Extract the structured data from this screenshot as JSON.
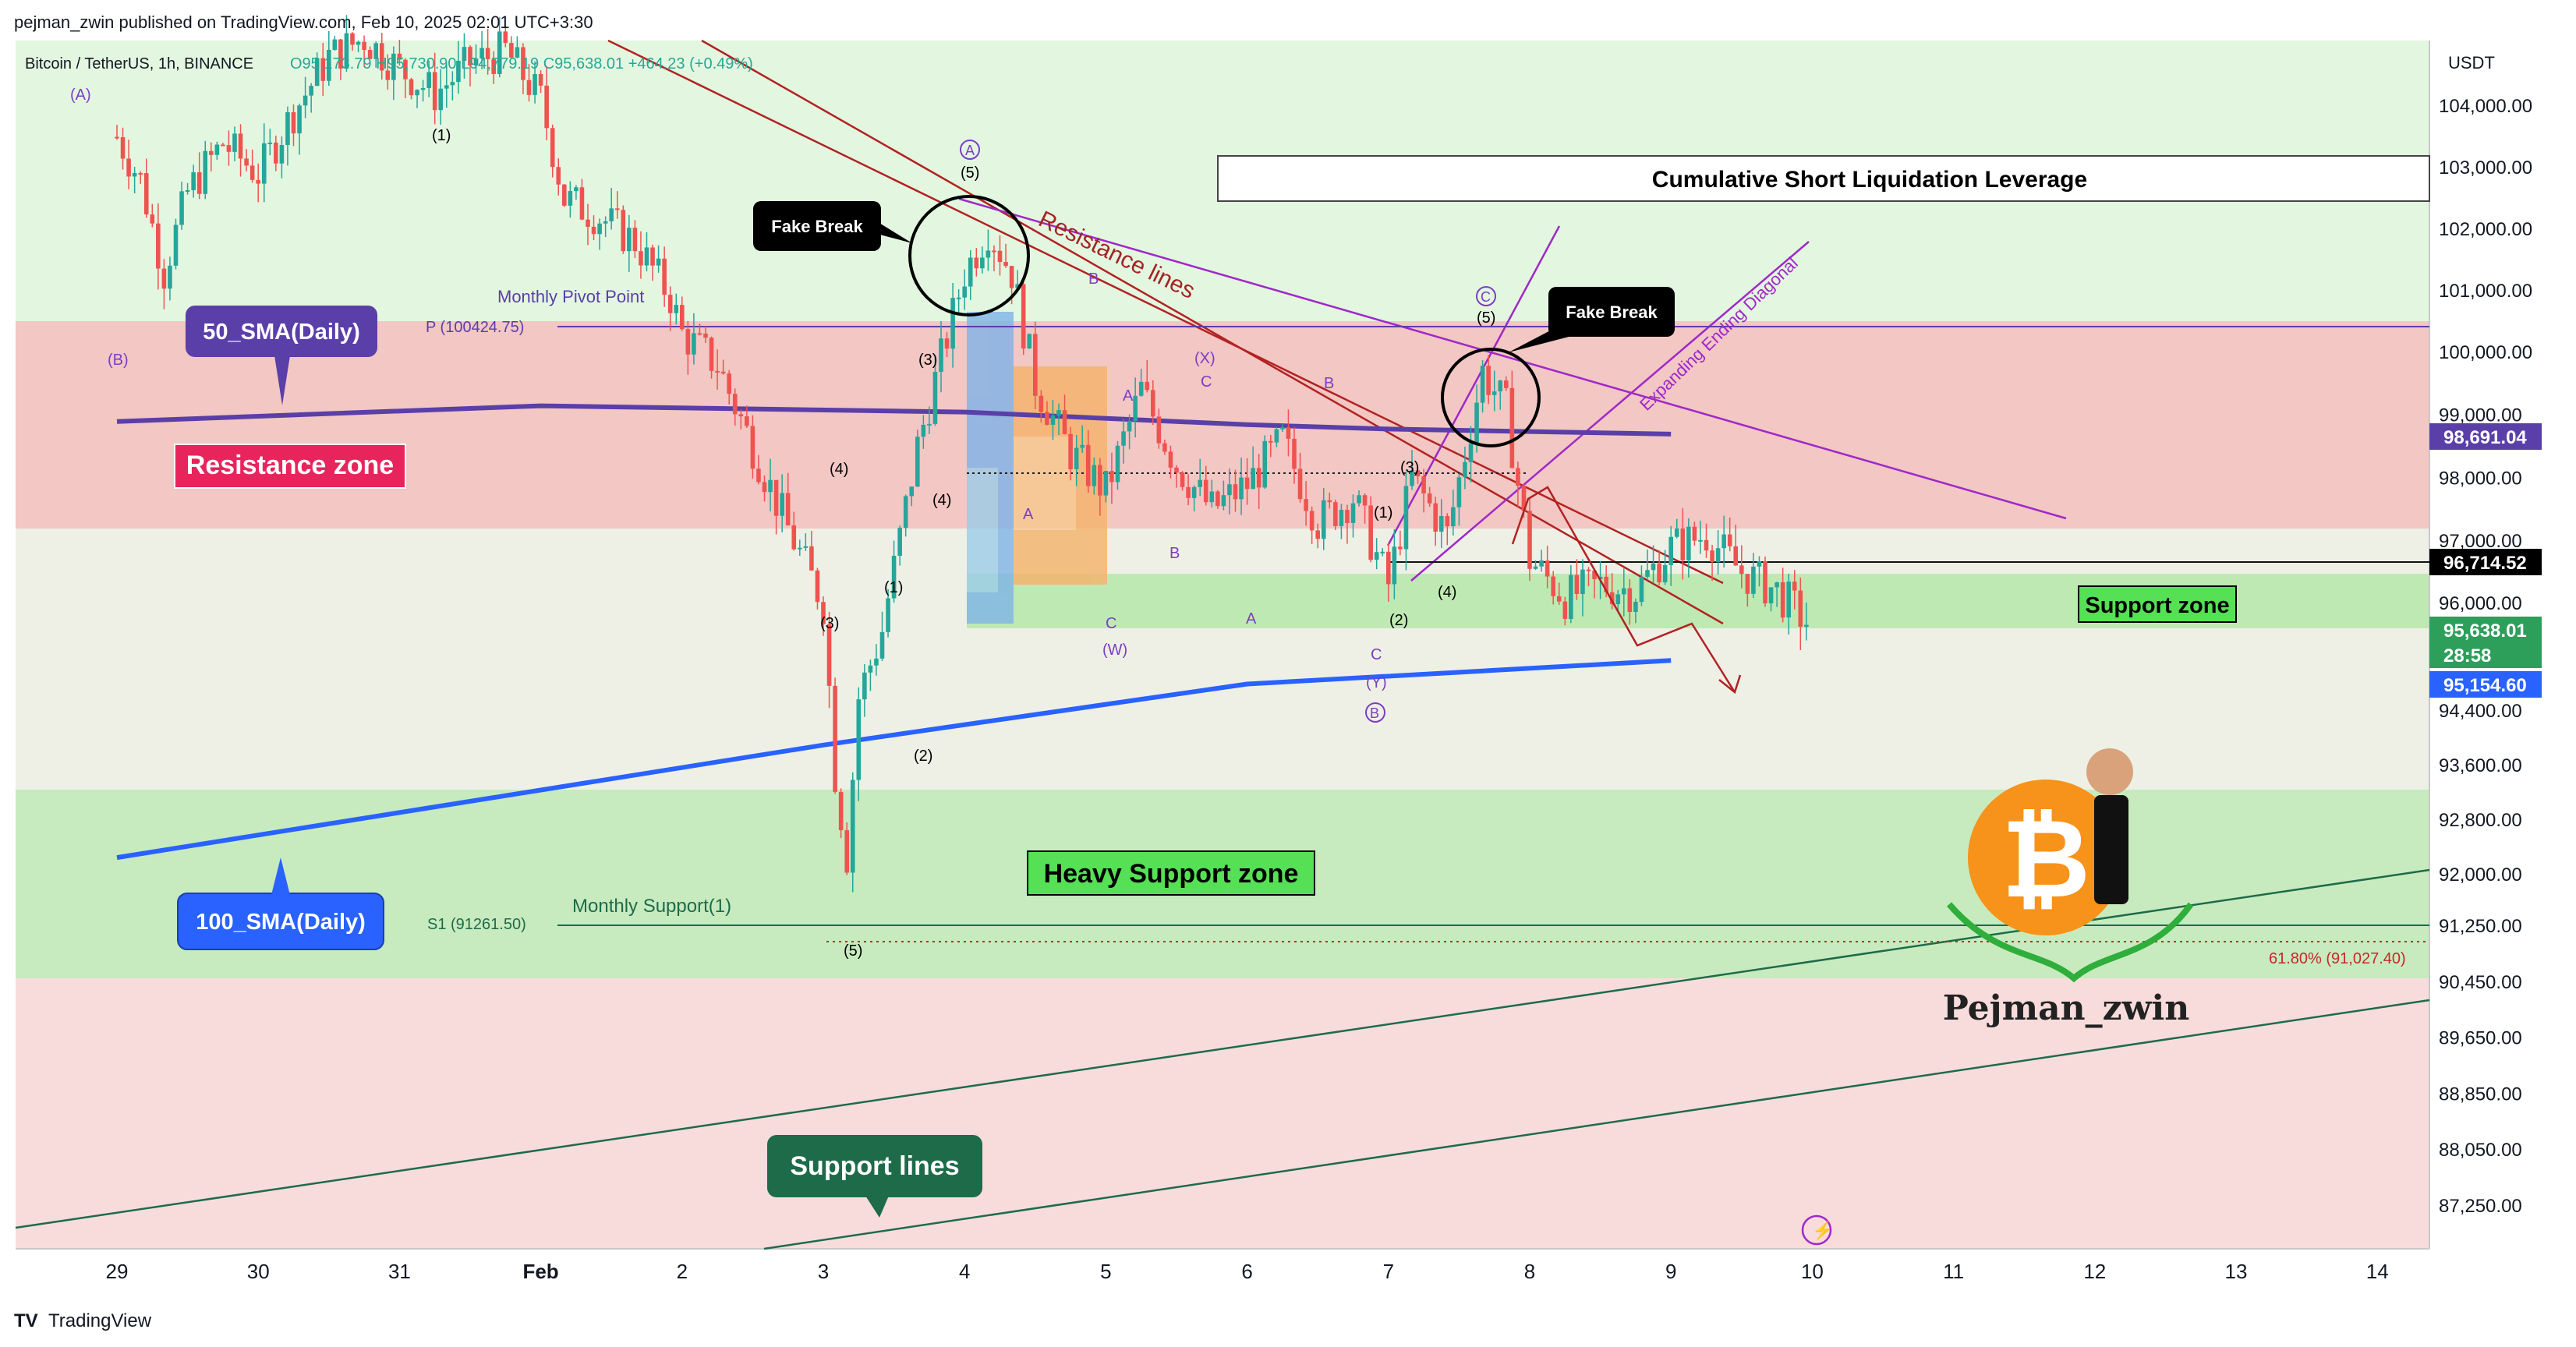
{
  "header": {
    "published": "pejman_zwin published on TradingView.com, Feb 10, 2025 02:01 UTC+3:30",
    "symbol": "Bitcoin / TetherUS, 1h, BINANCE",
    "ohlc": "O95,173.79 H95,730.90 L94,779.19 C95,638.01 +464.23 (+0.49%)"
  },
  "footer": {
    "brand": "TradingView"
  },
  "colors": {
    "up": "#26a69a",
    "down": "#ef5350",
    "resistance_zone": "#f4c6c6",
    "support_zone": "#c5ecc0",
    "sma50": "#5a3fa8",
    "sma100": "#2962ff",
    "price_green": "#2e9e5b",
    "purple_line": "#a028c8",
    "red_line": "#b22222"
  },
  "chart_data": {
    "type": "candlestick",
    "title": "",
    "currency": "USDT",
    "y_ticks": [
      "104,000.00",
      "103,000.00",
      "102,000.00",
      "101,000.00",
      "100,000.00",
      "99,000.00",
      "98,000.00",
      "97,000.00",
      "96,000.00",
      "94,400.00",
      "93,600.00",
      "92,800.00",
      "92,000.00",
      "91,250.00",
      "90,450.00",
      "89,650.00",
      "88,850.00",
      "88,050.00",
      "87,250.00"
    ],
    "x_ticks": [
      "29",
      "30",
      "31",
      "Feb",
      "2",
      "3",
      "4",
      "5",
      "6",
      "7",
      "8",
      "9",
      "10",
      "11",
      "12",
      "13",
      "14"
    ],
    "x_tick_dates": [
      "2025-01-29",
      "2025-01-30",
      "2025-01-31",
      "2025-02-01",
      "2025-02-02",
      "2025-02-03",
      "2025-02-04",
      "2025-02-05",
      "2025-02-06",
      "2025-02-07",
      "2025-02-08",
      "2025-02-09",
      "2025-02-10",
      "2025-02-11",
      "2025-02-12",
      "2025-02-13",
      "2025-02-14"
    ],
    "price_labels": [
      {
        "text": "98,691.04",
        "value": 98691.04,
        "color": "#5a3fa8"
      },
      {
        "text": "96,714.52",
        "value": 96714.52,
        "color": "#000000"
      },
      {
        "text": "95,638.01",
        "value": 95638.01,
        "color": "#2e9e5b"
      },
      {
        "text": "28:58",
        "value": 95638.01,
        "color": "#2e9e5b"
      },
      {
        "text": "95,154.60",
        "value": 95154.6,
        "color": "#2962ff"
      }
    ],
    "series": [
      {
        "name": "50_SMA(Daily)",
        "points": [
          [
            "2025-01-29",
            98900
          ],
          [
            "2025-02-01",
            99150
          ],
          [
            "2025-02-04",
            99050
          ],
          [
            "2025-02-06",
            98850
          ],
          [
            "2025-02-07",
            98780
          ],
          [
            "2025-02-09",
            98700
          ]
        ]
      },
      {
        "name": "100_SMA(Daily)",
        "points": [
          [
            "2025-01-29",
            92250
          ],
          [
            "2025-02-03",
            93900
          ],
          [
            "2025-02-06",
            94800
          ],
          [
            "2025-02-09",
            95150
          ]
        ]
      }
    ],
    "candles": [
      [
        "2025-01-29",
        103500
      ],
      [
        "2025-01-29T04",
        102800
      ],
      [
        "2025-01-29T08",
        101300
      ],
      [
        "2025-01-29T12",
        102600
      ],
      [
        "2025-01-29T18",
        103400
      ],
      [
        "2025-01-30",
        102900
      ],
      [
        "2025-01-30T06",
        103900
      ],
      [
        "2025-01-30T12",
        104800
      ],
      [
        "2025-01-30T18",
        105100
      ],
      [
        "2025-01-31",
        104600
      ],
      [
        "2025-01-31T06",
        104200
      ],
      [
        "2025-01-31T12",
        104700
      ],
      [
        "2025-01-31T18",
        104900
      ],
      [
        "2025-02-01",
        104100
      ],
      [
        "2025-02-01T04",
        102500
      ],
      [
        "2025-02-01T10",
        102200
      ],
      [
        "2025-02-01T16",
        101800
      ],
      [
        "2025-02-01T22",
        100900
      ],
      [
        "2025-02-02",
        100300
      ],
      [
        "2025-02-02T06",
        99800
      ],
      [
        "2025-02-02T12",
        98500
      ],
      [
        "2025-02-02T18",
        97200
      ],
      [
        "2025-02-03",
        96000
      ],
      [
        "2025-02-03T02",
        93500
      ],
      [
        "2025-02-03T04",
        92300
      ],
      [
        "2025-02-03T06",
        94600
      ],
      [
        "2025-02-03T10",
        95600
      ],
      [
        "2025-02-03T16",
        98500
      ],
      [
        "2025-02-04",
        101300
      ],
      [
        "2025-02-04T04",
        102000
      ],
      [
        "2025-02-04T08",
        101300
      ],
      [
        "2025-02-04T12",
        99500
      ],
      [
        "2025-02-04T18",
        98400
      ],
      [
        "2025-02-05",
        97800
      ],
      [
        "2025-02-05T06",
        99400
      ],
      [
        "2025-02-05T12",
        98200
      ],
      [
        "2025-02-05T18",
        97500
      ],
      [
        "2025-02-06",
        97900
      ],
      [
        "2025-02-06T06",
        98600
      ],
      [
        "2025-02-06T12",
        97300
      ],
      [
        "2025-02-06T18",
        97700
      ],
      [
        "2025-02-07",
        96300
      ],
      [
        "2025-02-07T04",
        98000
      ],
      [
        "2025-02-07T10",
        97100
      ],
      [
        "2025-02-07T16",
        99700
      ],
      [
        "2025-02-07T20",
        99100
      ],
      [
        "2025-02-08",
        96700
      ],
      [
        "2025-02-08T06",
        96100
      ],
      [
        "2025-02-08T12",
        96300
      ],
      [
        "2025-02-08T18",
        96200
      ],
      [
        "2025-02-09",
        96900
      ],
      [
        "2025-02-09T06",
        97100
      ],
      [
        "2025-02-09T12",
        96500
      ],
      [
        "2025-02-09T18",
        96200
      ],
      [
        "2025-02-10",
        95638.01
      ]
    ]
  },
  "annotations": {
    "resistance_zone": "Resistance zone",
    "support_zone": "Support zone",
    "heavy_support_zone": "Heavy Support zone",
    "support_lines": "Support lines",
    "resistance_lines": "Resistance lines",
    "fake_break_1": "Fake Break",
    "fake_break_2": "Fake Break",
    "sma50_label": "50_SMA(Daily)",
    "sma100_label": "100_SMA(Daily)",
    "monthly_pivot": "Monthly Pivot Point",
    "pivot_value": "P (100424.75)",
    "monthly_support": "Monthly Support(1)",
    "support_value": "S1 (91261.50)",
    "cumulative": "Cumulative Short Liquidation Leverage",
    "expanding": "Expanding Ending Diagonal",
    "fib": "61.80% (91,027.40)",
    "author": "Pejman_zwin",
    "waves": {
      "A1": "(A)",
      "B1": "(B)",
      "one_a": "(1)",
      "five_a": "(5)",
      "four_a": "(4)",
      "three_a": "(3)",
      "three_b": "(3)",
      "two_a": "(2)",
      "five_b": "(5)",
      "four_b": "(4)",
      "one_b": "(1)",
      "circA": "A",
      "circA5": "(5)",
      "B_a": "B",
      "A_a": "A",
      "A_b": "A",
      "X": "(X)",
      "C_a": "C",
      "B_b": "B",
      "B_c": "B",
      "C_b": "C",
      "W": "(W)",
      "A_c": "A",
      "circC": "C",
      "circC5": "(5)",
      "three_c": "(3)",
      "one_c": "(1)",
      "four_c": "(4)",
      "two_b": "(2)",
      "C_c": "C",
      "Y": "(Y)",
      "circB": "B"
    }
  }
}
